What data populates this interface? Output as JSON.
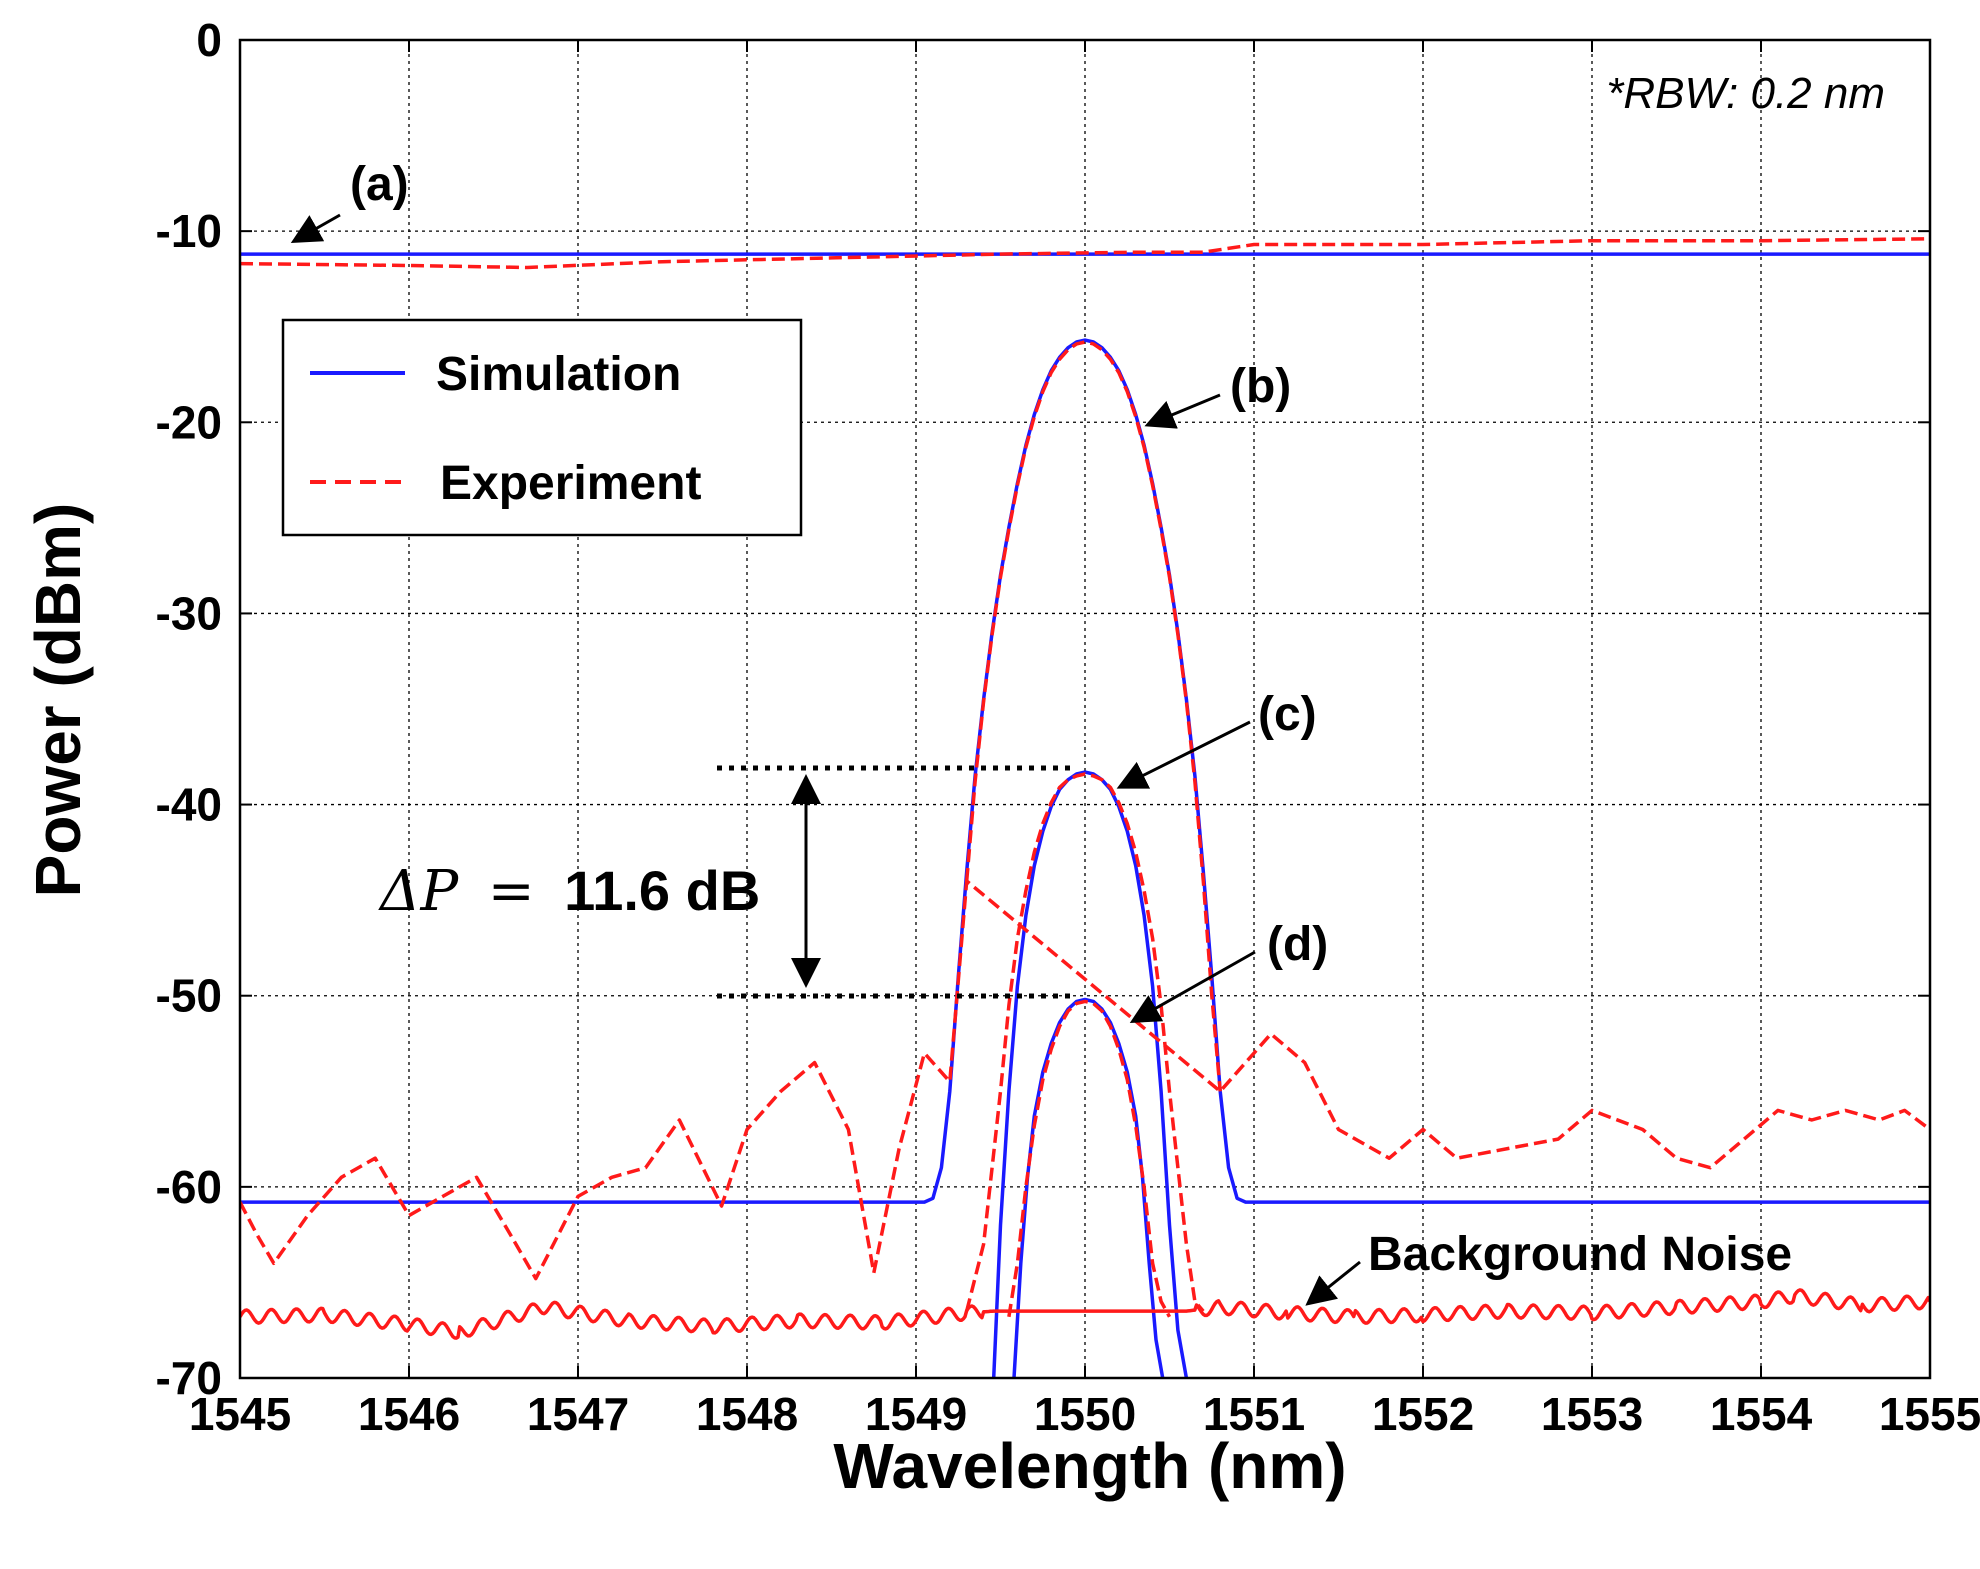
{
  "chart_data": {
    "type": "line",
    "xlabel": "Wavelength (nm)",
    "ylabel": "Power (dBm)",
    "xlim": [
      1545,
      1555
    ],
    "ylim": [
      -70,
      0
    ],
    "x_ticks": [
      1545,
      1546,
      1547,
      1548,
      1549,
      1550,
      1551,
      1552,
      1553,
      1554,
      1555
    ],
    "y_ticks": [
      0,
      -10,
      -20,
      -30,
      -40,
      -50,
      -60,
      -70
    ],
    "grid": true,
    "legend": {
      "position": "top-left",
      "entries": [
        {
          "label": "Simulation",
          "color": "#1a1aff",
          "style": "solid"
        },
        {
          "label": "Experiment",
          "color": "#ff1a1a",
          "style": "dashed"
        }
      ]
    },
    "annotations": {
      "rbw": "*RBW: 0.2 nm",
      "a": "(a)",
      "b": "(b)",
      "c": "(c)",
      "d": "(d)",
      "background_noise": "Background Noise",
      "delta_p_symbol": "ΔP",
      "delta_p_eq": "=",
      "delta_p_value": "11.6 dB"
    },
    "series": [
      {
        "name": "Simulation (a)",
        "color": "#1a1aff",
        "style": "solid",
        "x": [
          1545,
          1555
        ],
        "y": [
          -11.2,
          -11.2
        ]
      },
      {
        "name": "Experiment (a)",
        "color": "#ff1a1a",
        "style": "dashed",
        "x": [
          1545,
          1546,
          1546.7,
          1547.5,
          1548.5,
          1549.5,
          1550.3,
          1550.7,
          1551,
          1552,
          1553,
          1554,
          1555
        ],
        "y": [
          -11.7,
          -11.8,
          -11.9,
          -11.6,
          -11.4,
          -11.2,
          -11.1,
          -11.1,
          -10.7,
          -10.7,
          -10.5,
          -10.5,
          -10.4
        ]
      },
      {
        "name": "Simulation (b)",
        "color": "#1a1aff",
        "style": "solid",
        "x": [
          1545,
          1549.05,
          1549.1,
          1549.15,
          1549.2,
          1549.25,
          1549.3,
          1549.35,
          1549.4,
          1549.45,
          1549.5,
          1549.55,
          1549.6,
          1549.65,
          1549.7,
          1549.75,
          1549.8,
          1549.85,
          1549.9,
          1549.95,
          1550.0,
          1550.05,
          1550.1,
          1550.15,
          1550.2,
          1550.25,
          1550.3,
          1550.35,
          1550.4,
          1550.45,
          1550.5,
          1550.55,
          1550.6,
          1550.65,
          1550.7,
          1550.75,
          1550.8,
          1550.85,
          1550.9,
          1550.95,
          1555
        ],
        "y": [
          -60.8,
          -60.8,
          -60.6,
          -59.0,
          -55.0,
          -49.0,
          -43.5,
          -38.5,
          -34.5,
          -31.0,
          -28.0,
          -25.5,
          -23.2,
          -21.2,
          -19.6,
          -18.3,
          -17.3,
          -16.6,
          -16.1,
          -15.8,
          -15.7,
          -15.8,
          -16.1,
          -16.6,
          -17.3,
          -18.3,
          -19.6,
          -21.2,
          -23.2,
          -25.5,
          -28.0,
          -31.0,
          -34.5,
          -38.5,
          -43.5,
          -49.0,
          -55.0,
          -59.0,
          -60.6,
          -60.8,
          -60.8
        ]
      },
      {
        "name": "Experiment (b)",
        "color": "#ff1a1a",
        "style": "dashed",
        "x": [
          1549.3,
          1549.35,
          1549.4,
          1549.45,
          1549.5,
          1549.55,
          1549.6,
          1549.65,
          1549.7,
          1549.75,
          1549.8,
          1549.85,
          1549.9,
          1549.95,
          1550.0,
          1550.05,
          1550.1,
          1550.15,
          1550.2,
          1550.25,
          1550.3,
          1550.35,
          1550.4,
          1550.45,
          1550.5,
          1550.55,
          1550.6,
          1550.65,
          1550.7,
          1550.75,
          1550.8
        ],
        "y": [
          -44.0,
          -38.8,
          -34.6,
          -31.1,
          -28.1,
          -25.6,
          -23.3,
          -21.3,
          -19.7,
          -18.4,
          -17.4,
          -16.7,
          -16.2,
          -15.9,
          -15.8,
          -15.9,
          -16.2,
          -16.7,
          -17.4,
          -18.4,
          -19.7,
          -21.3,
          -23.3,
          -25.6,
          -28.1,
          -31.1,
          -34.6,
          -38.8,
          -44.0,
          -50.0,
          -55.0
        ]
      },
      {
        "name": "Simulation (c)",
        "color": "#1a1aff",
        "style": "solid",
        "x": [
          1549.46,
          1549.5,
          1549.55,
          1549.6,
          1549.65,
          1549.7,
          1549.75,
          1549.8,
          1549.85,
          1549.9,
          1549.95,
          1550.0,
          1550.05,
          1550.1,
          1550.15,
          1550.2,
          1550.25,
          1550.3,
          1550.35,
          1550.4,
          1550.45,
          1550.5,
          1550.55,
          1550.6
        ],
        "y": [
          -70,
          -62.0,
          -55.0,
          -49.5,
          -45.8,
          -43.2,
          -41.4,
          -40.1,
          -39.2,
          -38.7,
          -38.4,
          -38.3,
          -38.4,
          -38.7,
          -39.2,
          -40.1,
          -41.4,
          -43.2,
          -45.8,
          -49.5,
          -55.0,
          -62.0,
          -67.5,
          -70
        ]
      },
      {
        "name": "Experiment (c)",
        "color": "#ff1a1a",
        "style": "dashed",
        "x": [
          1549.3,
          1549.4,
          1549.45,
          1549.5,
          1549.55,
          1549.6,
          1549.65,
          1549.7,
          1549.75,
          1549.8,
          1549.85,
          1549.9,
          1549.95,
          1550.0,
          1550.05,
          1550.1,
          1550.15,
          1550.2,
          1550.25,
          1550.3,
          1550.35,
          1550.4,
          1550.45,
          1550.5,
          1550.55,
          1550.6,
          1550.65,
          1550.7
        ],
        "y": [
          -66.5,
          -63.0,
          -59.0,
          -55.0,
          -50.5,
          -47.0,
          -44.5,
          -42.5,
          -41.0,
          -39.9,
          -39.1,
          -38.7,
          -38.5,
          -38.4,
          -38.5,
          -38.7,
          -39.1,
          -39.9,
          -41.0,
          -42.5,
          -44.5,
          -47.0,
          -50.5,
          -55.0,
          -59.0,
          -63.0,
          -66.0,
          -66.5
        ]
      },
      {
        "name": "Simulation (d)",
        "color": "#1a1aff",
        "style": "solid",
        "x": [
          1549.58,
          1549.62,
          1549.66,
          1549.7,
          1549.75,
          1549.8,
          1549.85,
          1549.9,
          1549.95,
          1550.0,
          1550.05,
          1550.1,
          1550.15,
          1550.2,
          1550.25,
          1550.3,
          1550.34,
          1550.38,
          1550.42,
          1550.46
        ],
        "y": [
          -70,
          -64.0,
          -59.5,
          -56.3,
          -54.0,
          -52.5,
          -51.4,
          -50.7,
          -50.3,
          -50.2,
          -50.3,
          -50.7,
          -51.4,
          -52.5,
          -54.0,
          -56.3,
          -59.5,
          -64.0,
          -68.0,
          -70
        ]
      },
      {
        "name": "Experiment (d)",
        "color": "#ff1a1a",
        "style": "dashed",
        "x": [
          1549.55,
          1549.6,
          1549.65,
          1549.7,
          1549.75,
          1549.8,
          1549.85,
          1549.9,
          1549.95,
          1550.0,
          1550.05,
          1550.1,
          1550.15,
          1550.2,
          1550.25,
          1550.3,
          1550.35,
          1550.4,
          1550.45,
          1550.5
        ],
        "y": [
          -66.8,
          -64.0,
          -60.0,
          -56.8,
          -54.4,
          -52.8,
          -51.6,
          -50.8,
          -50.4,
          -50.3,
          -50.4,
          -50.8,
          -51.6,
          -52.8,
          -54.4,
          -56.8,
          -60.0,
          -64.0,
          -66.0,
          -66.8
        ]
      },
      {
        "name": "Experiment ASE",
        "color": "#ff1a1a",
        "style": "dashed",
        "x": [
          1545,
          1545.1,
          1545.2,
          1545.4,
          1545.6,
          1545.8,
          1546.0,
          1546.2,
          1546.4,
          1546.6,
          1546.75,
          1547.0,
          1547.2,
          1547.4,
          1547.6,
          1547.85,
          1548.0,
          1548.2,
          1548.4,
          1548.6,
          1548.75,
          1548.9,
          1549.05,
          1549.2,
          1549.3,
          1550.8,
          1551.0,
          1551.1,
          1551.3,
          1551.5,
          1551.8,
          1552.0,
          1552.2,
          1552.5,
          1552.8,
          1553.0,
          1553.3,
          1553.5,
          1553.7,
          1553.9,
          1554.1,
          1554.3,
          1554.5,
          1554.7,
          1554.85,
          1555.0
        ],
        "y": [
          -60.8,
          -62.5,
          -64.0,
          -61.5,
          -59.5,
          -58.5,
          -61.5,
          -60.5,
          -59.5,
          -62.5,
          -64.8,
          -60.5,
          -59.5,
          -59.0,
          -56.5,
          -61.0,
          -57.0,
          -55.0,
          -53.5,
          -57.0,
          -64.5,
          -58.0,
          -53.0,
          -54.5,
          -44.0,
          -55.0,
          -53.0,
          -52.0,
          -53.5,
          -57.0,
          -58.5,
          -57.0,
          -58.5,
          -58.0,
          -57.5,
          -56.0,
          -57.0,
          -58.5,
          -59.0,
          -57.5,
          -56.0,
          -56.5,
          -56.0,
          -56.5,
          -56.0,
          -57.0
        ]
      },
      {
        "name": "Background noise",
        "color": "#ff1a1a",
        "style": "solid",
        "x": [
          1545,
          1545.5,
          1546.0,
          1546.3,
          1546.8,
          1547.3,
          1547.8,
          1548.3,
          1548.8,
          1549.3,
          1549.46,
          1550.6,
          1550.8,
          1551.2,
          1551.6,
          1552.0,
          1552.5,
          1553.0,
          1553.5,
          1554.0,
          1554.2,
          1554.6,
          1555.0
        ],
        "y": [
          -66.8,
          -66.7,
          -67.2,
          -67.6,
          -66.3,
          -67.0,
          -67.3,
          -67.0,
          -67.1,
          -66.6,
          -66.5,
          -66.5,
          -66.3,
          -66.6,
          -66.8,
          -66.7,
          -66.5,
          -66.6,
          -66.3,
          -66.0,
          -65.7,
          -66.2,
          -66.0
        ]
      }
    ]
  }
}
